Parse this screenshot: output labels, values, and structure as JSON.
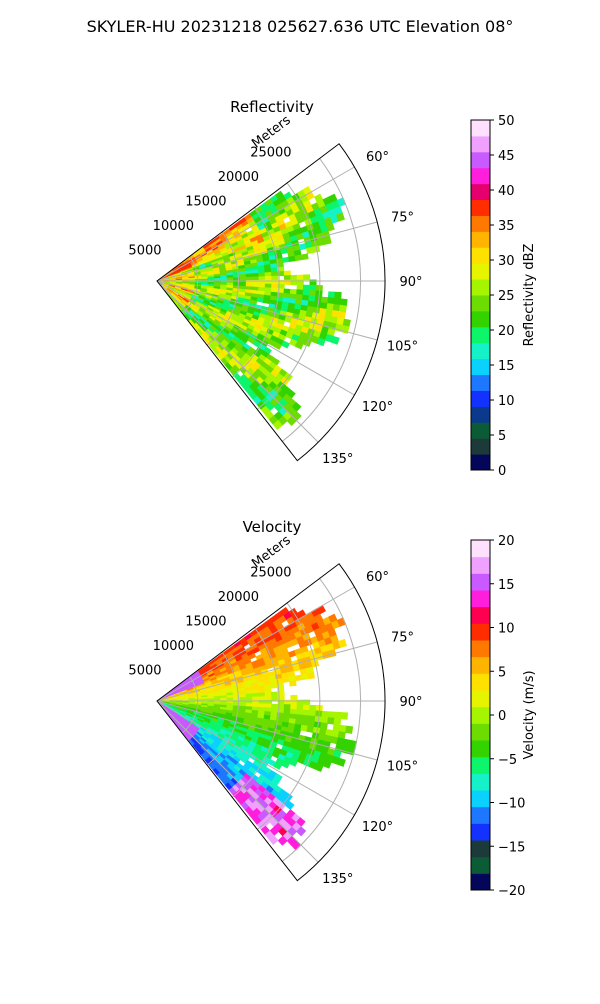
{
  "suptitle": "SKYLER-HU  20231218  025627.636 UTC Elevation 08°",
  "colors": {
    "reflectivity_scale": [
      "#04065a",
      "#1d3a3a",
      "#0b5b36",
      "#0b3a8c",
      "#1432ff",
      "#1d78ff",
      "#0bd1ff",
      "#16f2c8",
      "#0cf56b",
      "#33d300",
      "#6ddc00",
      "#a6f500",
      "#e6f400",
      "#ffe100",
      "#ffb400",
      "#ff7800",
      "#ff2d00",
      "#e6006e",
      "#ff1edc",
      "#c85aff",
      "#f0a0ff",
      "#ffe0ff"
    ],
    "velocity_scale": [
      "#04065a",
      "#0b5b36",
      "#1d3a3a",
      "#1432ff",
      "#1d78ff",
      "#0bd1ff",
      "#16f2c8",
      "#0cf56b",
      "#33d300",
      "#6ddc00",
      "#a6f500",
      "#e6f400",
      "#ffe100",
      "#ffb400",
      "#ff7800",
      "#ff2d00",
      "#ff0050",
      "#ff1edc",
      "#c85aff",
      "#f0a0ff",
      "#ffe0ff"
    ]
  },
  "chart_data": [
    {
      "type": "heatmap",
      "title": "Reflectivity",
      "projection": "polar sector",
      "range_label": "Meters",
      "range_ticks": [
        "5000",
        "10000",
        "15000",
        "20000",
        "25000"
      ],
      "range_tick_values": [
        5000,
        10000,
        15000,
        20000,
        25000
      ],
      "azimuth_ticks": [
        "60°",
        "75°",
        "90°",
        "105°",
        "120°",
        "135°"
      ],
      "azimuth_tick_values": [
        60,
        75,
        90,
        105,
        120,
        135
      ],
      "azimuth_range": [
        53,
        142
      ],
      "grid": true,
      "colorbar": {
        "label": "Reflectivity dBZ",
        "range": [
          0,
          50
        ],
        "ticks": [
          "0",
          "5",
          "10",
          "15",
          "20",
          "25",
          "30",
          "35",
          "40",
          "45",
          "50"
        ],
        "tick_values": [
          0,
          5,
          10,
          15,
          20,
          25,
          30,
          35,
          40,
          45,
          50
        ]
      },
      "field": {
        "description_values_dbz": "mostly 20-30 dBZ, patches 30-38 dBZ near radar and NE sector",
        "typical": 24,
        "max": 38,
        "min": 15
      }
    },
    {
      "type": "heatmap",
      "title": "Velocity",
      "projection": "polar sector",
      "range_label": "Meters",
      "range_ticks": [
        "5000",
        "10000",
        "15000",
        "20000",
        "25000"
      ],
      "range_tick_values": [
        5000,
        10000,
        15000,
        20000,
        25000
      ],
      "azimuth_ticks": [
        "60°",
        "75°",
        "90°",
        "105°",
        "120°",
        "135°"
      ],
      "azimuth_tick_values": [
        60,
        75,
        90,
        105,
        120,
        135
      ],
      "azimuth_range": [
        53,
        142
      ],
      "grid": true,
      "colorbar": {
        "label": "Velocity (m/s)",
        "range": [
          -20,
          20
        ],
        "ticks": [
          "−20",
          "−15",
          "−10",
          "−5",
          "0",
          "5",
          "10",
          "15",
          "20"
        ],
        "tick_values": [
          -20,
          -15,
          -10,
          -5,
          0,
          5,
          10,
          15,
          20
        ]
      },
      "field": {
        "north_sector_ms": 8,
        "center_sector_ms": -3,
        "south_sector_ms": -11,
        "far_south_edge_ms": 15
      }
    }
  ]
}
